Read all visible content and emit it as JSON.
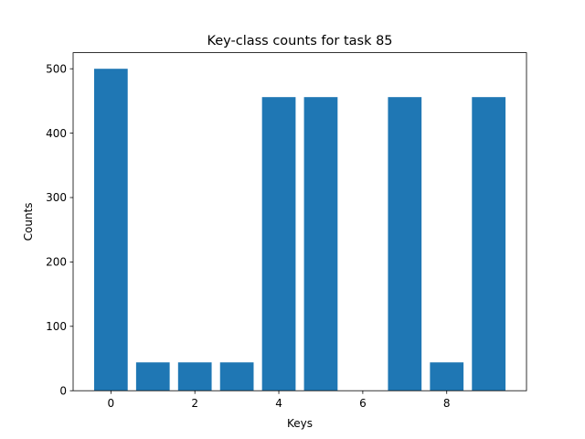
{
  "chart_data": {
    "type": "bar",
    "title": "Key-class counts for task 85",
    "xlabel": "Keys",
    "ylabel": "Counts",
    "categories": [
      0,
      1,
      2,
      3,
      4,
      5,
      6,
      7,
      8,
      9
    ],
    "values": [
      500,
      44,
      44,
      44,
      456,
      456,
      0,
      456,
      44,
      456
    ],
    "xlim": [
      -0.9,
      9.9
    ],
    "ylim": [
      0,
      525
    ],
    "xticks": [
      0,
      2,
      4,
      6,
      8
    ],
    "yticks": [
      0,
      100,
      200,
      300,
      400,
      500
    ],
    "bar_color": "#1f77b4",
    "grid": false,
    "legend": "none"
  }
}
